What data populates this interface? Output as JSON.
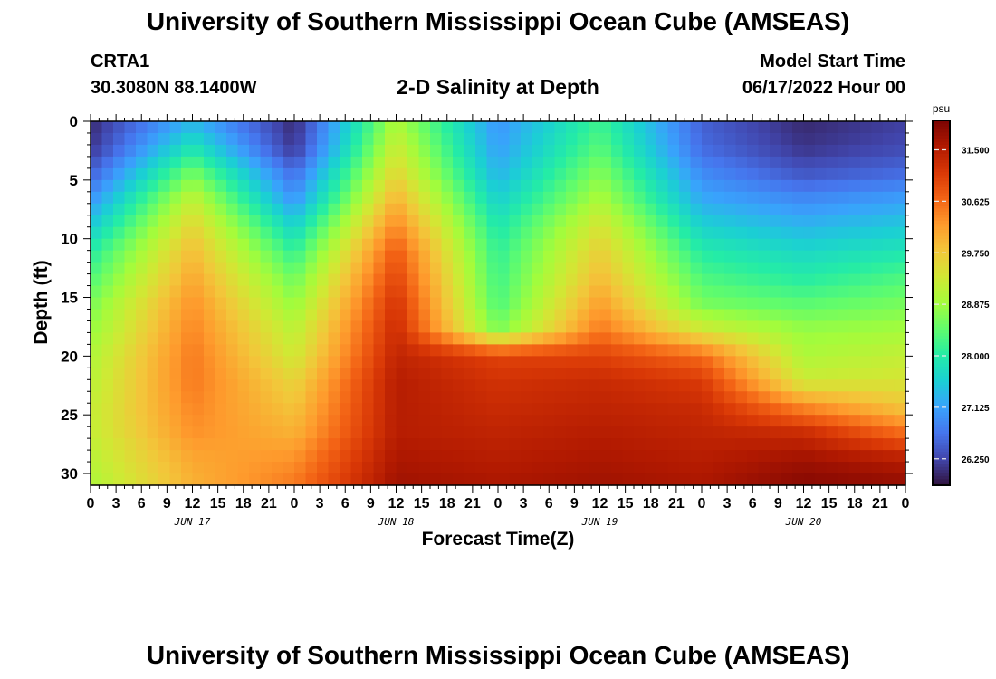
{
  "header": {
    "title": "University of Southern Mississippi Ocean Cube (AMSEAS)",
    "station_id": "CRTA1",
    "coordinates": "30.3080N  88.1400W",
    "subtitle": "2-D Salinity at Depth",
    "model_start_label": "Model Start Time",
    "model_start_value": "06/17/2022 Hour 00"
  },
  "footer": {
    "title": "University of Southern Mississippi Ocean Cube (AMSEAS)"
  },
  "chart_data": {
    "type": "heatmap",
    "xlabel": "Forecast Time(Z)",
    "ylabel": "Depth (ft)",
    "x_hours": [
      0,
      6,
      12,
      18,
      24,
      30,
      36,
      42,
      48,
      54,
      60,
      66,
      72,
      78,
      84,
      90,
      96
    ],
    "depths_ft": [
      0,
      5,
      10,
      15,
      20,
      25,
      30
    ],
    "salinity_psu": [
      [
        26.0,
        27.3,
        26.0,
        29.0,
        27.0,
        28.2,
        26.5,
        26.0,
        26.2
      ],
      [
        26.1,
        27.9,
        26.1,
        29.3,
        27.1,
        28.4,
        26.6,
        26.1,
        26.3
      ],
      [
        26.5,
        28.6,
        26.6,
        29.6,
        27.3,
        28.7,
        26.9,
        26.4,
        26.6
      ],
      [
        27.0,
        29.2,
        27.0,
        30.0,
        27.6,
        29.0,
        27.2,
        26.9,
        27.1
      ],
      [
        27.5,
        29.6,
        27.6,
        30.4,
        27.9,
        29.4,
        27.6,
        27.3,
        27.5
      ],
      [
        28.0,
        29.9,
        28.1,
        30.8,
        28.1,
        29.7,
        28.0,
        27.7,
        27.9
      ],
      [
        28.3,
        30.1,
        28.5,
        31.0,
        28.2,
        29.9,
        28.3,
        28.0,
        28.3
      ],
      [
        28.6,
        30.3,
        28.8,
        31.2,
        28.3,
        30.2,
        28.6,
        28.4,
        28.6
      ],
      [
        28.8,
        30.4,
        29.1,
        31.3,
        28.6,
        30.5,
        29.3,
        28.8,
        28.9
      ],
      [
        29.0,
        30.5,
        29.3,
        31.4,
        31.0,
        31.0,
        30.6,
        29.0,
        29.2
      ],
      [
        29.1,
        30.5,
        29.6,
        31.5,
        31.2,
        31.3,
        31.1,
        29.3,
        29.4
      ],
      [
        29.2,
        30.4,
        29.8,
        31.5,
        31.3,
        31.4,
        31.3,
        30.4,
        29.8
      ],
      [
        29.2,
        30.3,
        30.0,
        31.5,
        31.4,
        31.5,
        31.4,
        31.3,
        30.6
      ],
      [
        29.1,
        30.1,
        30.3,
        31.6,
        31.5,
        31.6,
        31.5,
        31.7,
        31.5
      ],
      [
        29.0,
        30.0,
        30.5,
        31.7,
        31.6,
        31.7,
        31.6,
        31.9,
        31.8
      ]
    ],
    "date_labels": [
      {
        "label": "JUN 17",
        "hour": 12
      },
      {
        "label": "JUN 18",
        "hour": 36
      },
      {
        "label": "JUN 19",
        "hour": 60
      },
      {
        "label": "JUN 20",
        "hour": 84
      }
    ],
    "colorbar": {
      "unit": "psu",
      "ticks": [
        "26.250",
        "27.125",
        "28.000",
        "28.875",
        "29.750",
        "30.625",
        "31.500"
      ],
      "range": [
        25.8,
        32.0
      ]
    },
    "colormap": [
      "#30123b",
      "#4145ab",
      "#4675ed",
      "#39a2fc",
      "#1bcfd4",
      "#24eca6",
      "#61fc6c",
      "#a4fc3b",
      "#d1e834",
      "#f3c63a",
      "#fe9b2d",
      "#f36315",
      "#d93806",
      "#b11901",
      "#7a0403"
    ]
  }
}
